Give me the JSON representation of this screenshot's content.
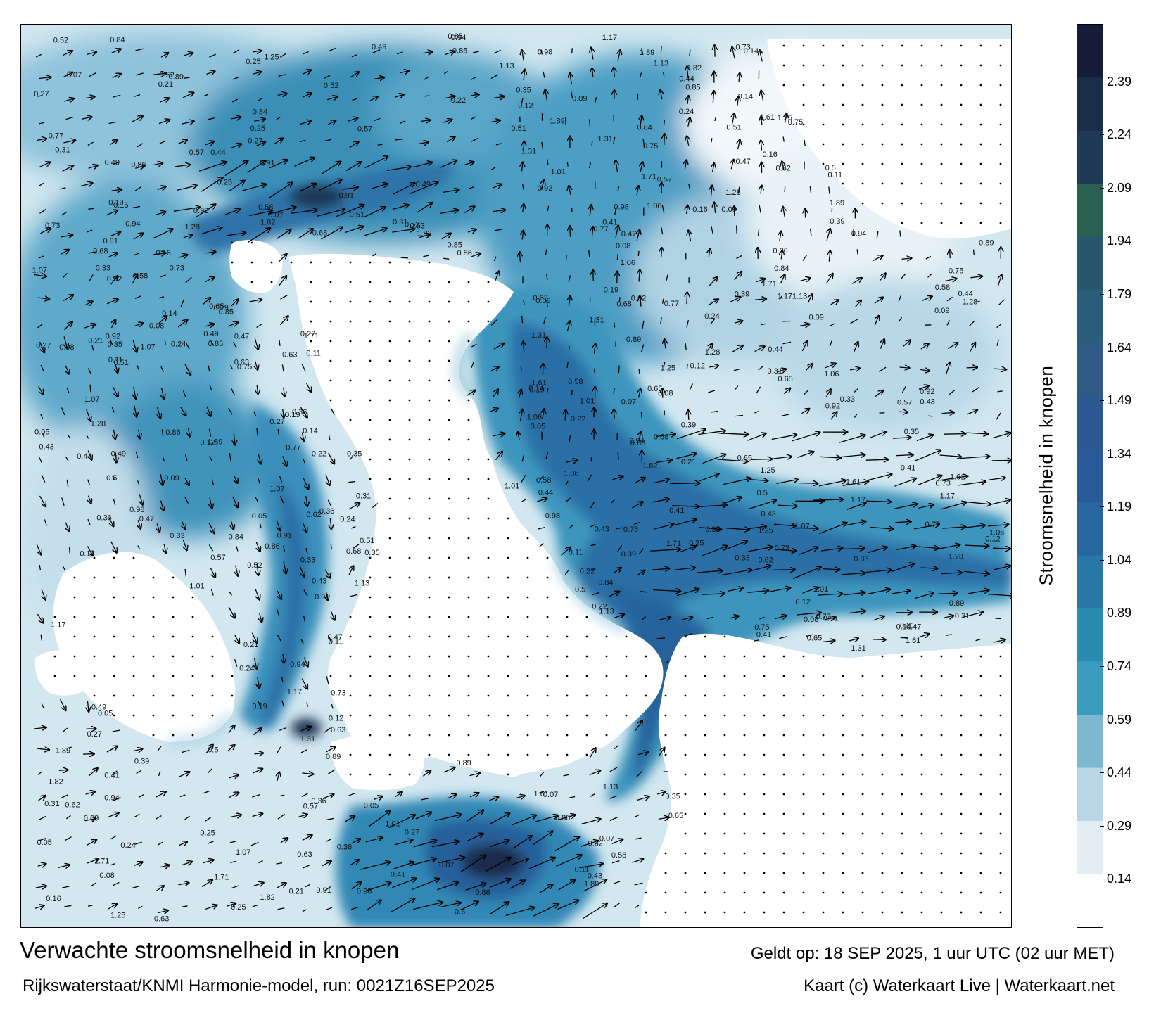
{
  "title": "Verwachte stroomsnelheid in knopen",
  "subtitle": "Rijkswaterstaat/KNMI Harmonie-model, run: 0021Z16SEP2025",
  "valid_time": "Geldt op: 18 SEP 2025, 1 uur UTC (02 uur MET)",
  "credit": "Kaart (c) Waterkaart Live | Waterkaart.net",
  "colorbar": {
    "label": "Stroomsnelheid in knopen",
    "ticks": [
      "0.14",
      "0.29",
      "0.44",
      "0.59",
      "0.74",
      "0.89",
      "1.04",
      "1.19",
      "1.34",
      "1.49",
      "1.64",
      "1.79",
      "1.94",
      "2.09",
      "2.24",
      "2.39"
    ],
    "colors": [
      "#ffffff",
      "#e2eef4",
      "#b8d6e5",
      "#7cb8d0",
      "#3b9cc0",
      "#2a8bb0",
      "#2877a6",
      "#27669f",
      "#285a9a",
      "#2b5890",
      "#2e5a85",
      "#2a5d7a",
      "#28566f",
      "#29604f",
      "#1e3a56",
      "#1a2d4a",
      "#161c38"
    ]
  },
  "sample_labels": [
    {
      "t": "0.41"
    },
    {
      "t": "0.31"
    },
    {
      "t": "0.5"
    },
    {
      "t": "0.25"
    },
    {
      "t": "0.12"
    },
    {
      "t": "0.14"
    },
    {
      "t": "0.22"
    },
    {
      "t": "0.05"
    },
    {
      "t": "0.47"
    },
    {
      "t": "0.51"
    },
    {
      "t": "0.19"
    },
    {
      "t": "0.36"
    },
    {
      "t": "0.39"
    },
    {
      "t": "0.09"
    },
    {
      "t": "0.21"
    },
    {
      "t": "0.24"
    },
    {
      "t": "0.94"
    },
    {
      "t": "1.06"
    },
    {
      "t": "1.17"
    },
    {
      "t": "1.25"
    },
    {
      "t": "1.31"
    },
    {
      "t": "0.85"
    },
    {
      "t": "0.44"
    },
    {
      "t": "0.73"
    },
    {
      "t": "0.68"
    },
    {
      "t": "0.57"
    },
    {
      "t": "0.49"
    },
    {
      "t": "0.63"
    },
    {
      "t": "1.01"
    },
    {
      "t": "0.84"
    },
    {
      "t": "0.91"
    },
    {
      "t": "0.98"
    },
    {
      "t": "1.07"
    },
    {
      "t": "0.77"
    },
    {
      "t": "1.28"
    },
    {
      "t": "1.13"
    },
    {
      "t": "1.71"
    },
    {
      "t": "1.61"
    },
    {
      "t": "1.89"
    },
    {
      "t": "1.82"
    },
    {
      "t": "0.92"
    },
    {
      "t": "0.89"
    },
    {
      "t": "0.62"
    },
    {
      "t": "0.75"
    },
    {
      "t": "0.86"
    },
    {
      "t": "0.33"
    },
    {
      "t": "0.16"
    },
    {
      "t": "0.08"
    },
    {
      "t": "0.27"
    },
    {
      "t": "0.65"
    },
    {
      "t": "0.58"
    },
    {
      "t": "0.43"
    },
    {
      "t": "0.52"
    },
    {
      "t": "0.11"
    },
    {
      "t": "0.07"
    },
    {
      "t": "0.35"
    }
  ]
}
